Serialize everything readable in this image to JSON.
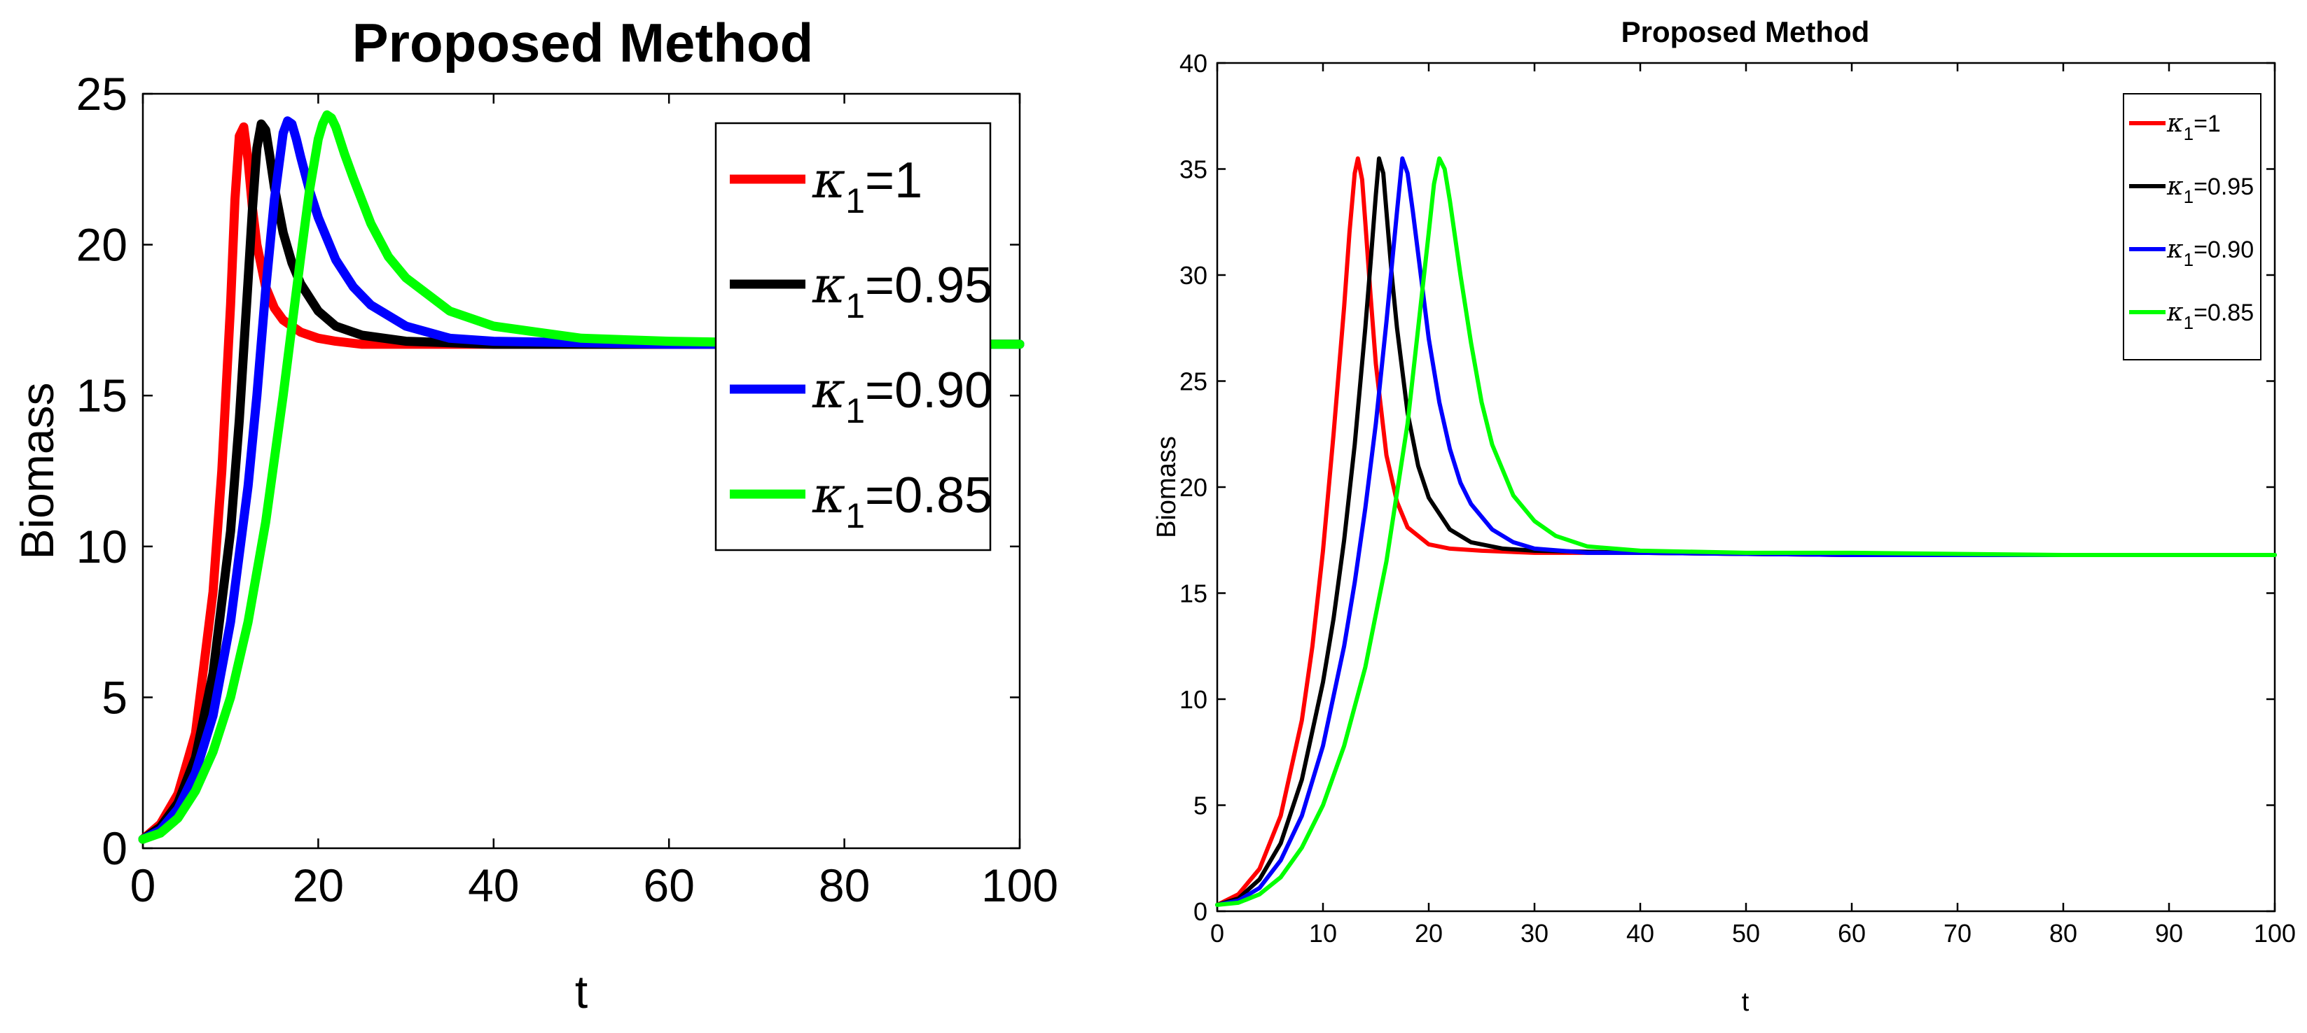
{
  "chart_data": [
    {
      "type": "line",
      "title": "Proposed Method",
      "xlabel": "t",
      "ylabel": "Biomass",
      "xlim": [
        0,
        100
      ],
      "ylim": [
        0,
        25
      ],
      "xticks": [
        0,
        20,
        40,
        60,
        80,
        100
      ],
      "yticks": [
        0,
        5,
        10,
        15,
        20,
        25
      ],
      "legend_position": "top-right",
      "series": [
        {
          "name": "=1",
          "label_symbol": "κ",
          "label_subscript": "1",
          "color": "#ff0000",
          "x": [
            0,
            2,
            4,
            6,
            8,
            9,
            10,
            10.5,
            11,
            11.5,
            12,
            12.5,
            13,
            14,
            15,
            16,
            18,
            20,
            22,
            25,
            30,
            40,
            60,
            80,
            100
          ],
          "y": [
            0.3,
            0.8,
            1.8,
            3.8,
            8.5,
            12.5,
            18.0,
            21.5,
            23.6,
            23.9,
            22.8,
            21.2,
            20.0,
            18.6,
            17.9,
            17.5,
            17.1,
            16.9,
            16.8,
            16.7,
            16.7,
            16.7,
            16.7,
            16.7,
            16.7
          ]
        },
        {
          "name": "=0.95",
          "label_symbol": "κ",
          "label_subscript": "1",
          "color": "#000000",
          "x": [
            0,
            2,
            4,
            6,
            8,
            10,
            11,
            12,
            12.5,
            13,
            13.5,
            14,
            14.5,
            15,
            16,
            17,
            18,
            20,
            22,
            25,
            30,
            40,
            60,
            80,
            100
          ],
          "y": [
            0.3,
            0.7,
            1.5,
            3.0,
            5.8,
            10.5,
            14.2,
            18.8,
            21.2,
            23.2,
            24.0,
            23.8,
            22.9,
            21.9,
            20.4,
            19.4,
            18.7,
            17.8,
            17.3,
            17.0,
            16.8,
            16.7,
            16.7,
            16.7,
            16.7
          ]
        },
        {
          "name": "=0.90",
          "label_symbol": "κ",
          "label_subscript": "1",
          "color": "#0000ff",
          "x": [
            0,
            2,
            4,
            6,
            8,
            10,
            12,
            13,
            14,
            15,
            16,
            16.5,
            17,
            17.5,
            18,
            19,
            20,
            22,
            24,
            26,
            30,
            35,
            40,
            60,
            80,
            100
          ],
          "y": [
            0.3,
            0.6,
            1.3,
            2.5,
            4.4,
            7.5,
            12.0,
            15.0,
            18.5,
            21.5,
            23.7,
            24.1,
            24.0,
            23.5,
            22.9,
            21.8,
            20.9,
            19.5,
            18.6,
            18.0,
            17.3,
            16.9,
            16.8,
            16.7,
            16.7,
            16.7
          ]
        },
        {
          "name": "=0.85",
          "label_symbol": "κ",
          "label_subscript": "1",
          "color": "#00ff00",
          "x": [
            0,
            2,
            4,
            6,
            8,
            10,
            12,
            14,
            16,
            17,
            18,
            19,
            20,
            20.5,
            21,
            21.5,
            22,
            23,
            24,
            26,
            28,
            30,
            35,
            40,
            50,
            60,
            80,
            100
          ],
          "y": [
            0.3,
            0.5,
            1.0,
            1.9,
            3.2,
            5.0,
            7.5,
            10.8,
            15.0,
            17.3,
            19.6,
            21.8,
            23.5,
            24.0,
            24.3,
            24.2,
            23.9,
            23.0,
            22.2,
            20.7,
            19.6,
            18.9,
            17.8,
            17.3,
            16.9,
            16.8,
            16.7,
            16.7
          ]
        }
      ]
    },
    {
      "type": "line",
      "title": "Proposed Method",
      "xlabel": "t",
      "ylabel": "Biomass",
      "xlim": [
        0,
        100
      ],
      "ylim": [
        0,
        40
      ],
      "xticks": [
        0,
        10,
        20,
        30,
        40,
        50,
        60,
        70,
        80,
        90,
        100
      ],
      "yticks": [
        0,
        5,
        10,
        15,
        20,
        25,
        30,
        35,
        40
      ],
      "legend_position": "top-right",
      "series": [
        {
          "name": "=1",
          "label_symbol": "κ",
          "label_subscript": "1",
          "color": "#ff0000",
          "x": [
            0,
            2,
            4,
            6,
            8,
            9,
            10,
            11,
            12,
            12.5,
            13,
            13.3,
            13.7,
            14,
            14.5,
            15,
            16,
            17,
            18,
            20,
            22,
            25,
            30,
            40,
            60,
            80,
            100
          ],
          "y": [
            0.3,
            0.8,
            2.0,
            4.5,
            9.0,
            12.5,
            17.0,
            22.5,
            28.5,
            32.0,
            34.8,
            35.5,
            34.5,
            32.5,
            29.0,
            25.8,
            21.5,
            19.3,
            18.1,
            17.3,
            17.1,
            17.0,
            16.9,
            16.9,
            16.8,
            16.8,
            16.8
          ]
        },
        {
          "name": "=0.95",
          "label_symbol": "κ",
          "label_subscript": "1",
          "color": "#000000",
          "x": [
            0,
            2,
            4,
            6,
            8,
            10,
            11,
            12,
            13,
            14,
            14.5,
            15,
            15.3,
            15.7,
            16,
            16.5,
            17,
            18,
            19,
            20,
            22,
            24,
            27,
            30,
            40,
            60,
            80,
            100
          ],
          "y": [
            0.3,
            0.6,
            1.5,
            3.2,
            6.2,
            10.8,
            13.8,
            17.5,
            22.0,
            27.5,
            30.6,
            33.8,
            35.5,
            34.8,
            33.0,
            30.0,
            27.5,
            23.5,
            21.0,
            19.5,
            18.0,
            17.4,
            17.1,
            17.0,
            16.9,
            16.8,
            16.8,
            16.8
          ]
        },
        {
          "name": "=0.90",
          "label_symbol": "κ",
          "label_subscript": "1",
          "color": "#0000ff",
          "x": [
            0,
            2,
            4,
            6,
            8,
            10,
            12,
            13,
            14,
            15,
            16,
            17,
            17.5,
            18,
            18.5,
            19,
            20,
            21,
            22,
            23,
            24,
            26,
            28,
            30,
            35,
            40,
            60,
            80,
            100
          ],
          "y": [
            0.3,
            0.5,
            1.1,
            2.4,
            4.5,
            7.8,
            12.5,
            15.5,
            19.0,
            23.0,
            27.8,
            33.0,
            35.5,
            34.8,
            33.0,
            31.0,
            27.0,
            24.0,
            21.8,
            20.2,
            19.2,
            18.0,
            17.4,
            17.1,
            16.9,
            16.9,
            16.8,
            16.8,
            16.8
          ]
        },
        {
          "name": "=0.85",
          "label_symbol": "κ",
          "label_subscript": "1",
          "color": "#00ff00",
          "x": [
            0,
            2,
            4,
            6,
            8,
            10,
            12,
            14,
            16,
            18,
            19,
            20,
            20.5,
            21,
            21.5,
            22,
            23,
            24,
            25,
            26,
            28,
            30,
            32,
            35,
            40,
            50,
            60,
            80,
            100
          ],
          "y": [
            0.3,
            0.4,
            0.8,
            1.6,
            3.0,
            5.0,
            7.8,
            11.5,
            16.5,
            23.0,
            27.5,
            32.0,
            34.3,
            35.5,
            35.0,
            33.5,
            30.0,
            26.8,
            24.0,
            22.0,
            19.6,
            18.4,
            17.7,
            17.2,
            17.0,
            16.9,
            16.9,
            16.8,
            16.8
          ]
        }
      ]
    }
  ]
}
